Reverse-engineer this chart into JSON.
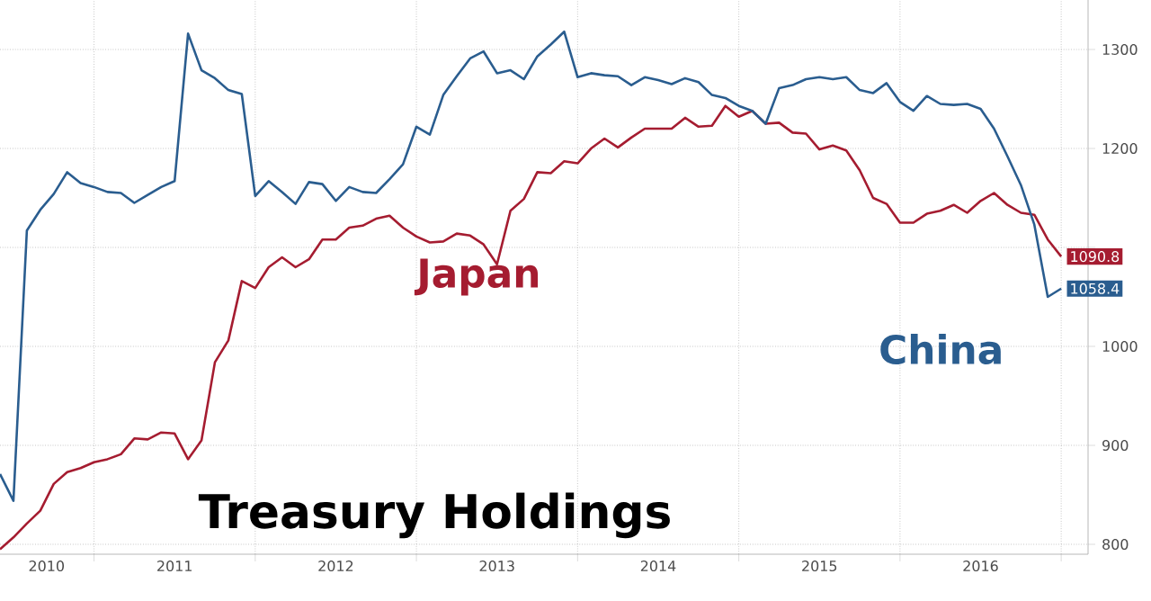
{
  "chart_data": {
    "type": "line",
    "title": "Treasury Holdings",
    "x": [
      "2010-06",
      "2010-07",
      "2010-08",
      "2010-09",
      "2010-10",
      "2010-11",
      "2010-12",
      "2011-01",
      "2011-02",
      "2011-03",
      "2011-04",
      "2011-05",
      "2011-06",
      "2011-07",
      "2011-08",
      "2011-09",
      "2011-10",
      "2011-11",
      "2011-12",
      "2012-01",
      "2012-02",
      "2012-03",
      "2012-04",
      "2012-05",
      "2012-06",
      "2012-07",
      "2012-08",
      "2012-09",
      "2012-10",
      "2012-11",
      "2012-12",
      "2013-01",
      "2013-02",
      "2013-03",
      "2013-04",
      "2013-05",
      "2013-06",
      "2013-07",
      "2013-08",
      "2013-09",
      "2013-10",
      "2013-11",
      "2013-12",
      "2014-01",
      "2014-02",
      "2014-03",
      "2014-04",
      "2014-05",
      "2014-06",
      "2014-07",
      "2014-08",
      "2014-09",
      "2014-10",
      "2014-11",
      "2014-12",
      "2015-01",
      "2015-02",
      "2015-03",
      "2015-04",
      "2015-05",
      "2015-06",
      "2015-07",
      "2015-08",
      "2015-09",
      "2015-10",
      "2015-11",
      "2015-12",
      "2016-01",
      "2016-02",
      "2016-03",
      "2016-04",
      "2016-05",
      "2016-06",
      "2016-07",
      "2016-08",
      "2016-09",
      "2016-10",
      "2016-11",
      "2016-12",
      "2017-01"
    ],
    "series": [
      {
        "name": "Japan",
        "color": "#a51c30",
        "values": [
          795,
          807,
          821,
          834,
          861,
          873,
          877,
          883,
          886,
          891,
          907,
          906,
          913,
          912,
          886,
          905,
          984,
          1006,
          1066,
          1059,
          1080,
          1090,
          1080,
          1088,
          1108,
          1108,
          1120,
          1122,
          1129,
          1132,
          1120,
          1111,
          1105,
          1106,
          1114,
          1112,
          1103,
          1083,
          1137,
          1149,
          1176,
          1175,
          1187,
          1185,
          1200,
          1210,
          1201,
          1211,
          1220,
          1220,
          1220,
          1231,
          1222,
          1223,
          1243,
          1232,
          1238,
          1225,
          1226,
          1216,
          1215,
          1199,
          1203,
          1198,
          1178,
          1150,
          1144,
          1125,
          1125,
          1134,
          1137,
          1143,
          1135,
          1147,
          1155,
          1143,
          1135,
          1133,
          1108,
          1090.8
        ],
        "value_labels": [
          null,
          null,
          null,
          null,
          null,
          null,
          null,
          null,
          null,
          null,
          null,
          null,
          null,
          null,
          null,
          null,
          null,
          null,
          null,
          null,
          null,
          null,
          null,
          null,
          null,
          null,
          null,
          null,
          null,
          null,
          null,
          null,
          null,
          null,
          null,
          null,
          null,
          null,
          null,
          null,
          null,
          null,
          null,
          null,
          null,
          null,
          null,
          null,
          null,
          null,
          null,
          null,
          null,
          null,
          null,
          null,
          null,
          null,
          null,
          null,
          null,
          null,
          null,
          null,
          null,
          null,
          null,
          null,
          null,
          null,
          null,
          null,
          null,
          null,
          null,
          null,
          null,
          null,
          null,
          "1090.8"
        ]
      },
      {
        "name": "China",
        "color": "#2a5d8f",
        "values": [
          871,
          844,
          1117,
          1138,
          1154,
          1176,
          1165,
          1161,
          1156,
          1155,
          1145,
          1153,
          1161,
          1167,
          1316,
          1279,
          1271,
          1259,
          1255,
          1152,
          1167,
          1156,
          1144,
          1166,
          1164,
          1147,
          1161,
          1156,
          1155,
          1169,
          1184,
          1222,
          1214,
          1254,
          1273,
          1291,
          1298,
          1276,
          1279,
          1270,
          1293,
          1305,
          1318,
          1272,
          1276,
          1274,
          1273,
          1264,
          1272,
          1269,
          1265,
          1271,
          1267,
          1254,
          1251,
          1243,
          1238,
          1225,
          1261,
          1264,
          1270,
          1272,
          1270,
          1272,
          1259,
          1256,
          1266,
          1247,
          1238,
          1253,
          1245,
          1244,
          1245,
          1240,
          1220,
          1192,
          1163,
          1123,
          1050,
          1058.4
        ],
        "value_labels": [
          null,
          null,
          null,
          null,
          null,
          null,
          null,
          null,
          null,
          null,
          null,
          null,
          null,
          null,
          null,
          null,
          null,
          null,
          null,
          null,
          null,
          null,
          null,
          null,
          null,
          null,
          null,
          null,
          null,
          null,
          null,
          null,
          null,
          null,
          null,
          null,
          null,
          null,
          null,
          null,
          null,
          null,
          null,
          null,
          null,
          null,
          null,
          null,
          null,
          null,
          null,
          null,
          null,
          null,
          null,
          null,
          null,
          null,
          null,
          null,
          null,
          null,
          null,
          null,
          null,
          null,
          null,
          null,
          null,
          null,
          null,
          null,
          null,
          null,
          null,
          null,
          null,
          null,
          null,
          "1058.4"
        ]
      }
    ],
    "xlim": [
      "2010-06",
      "2017-03"
    ],
    "ylim": [
      790,
      1350
    ],
    "xticks": [
      {
        "value": "2010-09-15",
        "label": "2010"
      },
      {
        "value": "2011-01",
        "label": null
      },
      {
        "value": "2011-07",
        "label": "2011"
      },
      {
        "value": "2012-01",
        "label": null
      },
      {
        "value": "2012-07",
        "label": "2012"
      },
      {
        "value": "2013-01",
        "label": null
      },
      {
        "value": "2013-07",
        "label": "2013"
      },
      {
        "value": "2014-01",
        "label": null
      },
      {
        "value": "2014-07",
        "label": "2014"
      },
      {
        "value": "2015-01",
        "label": null
      },
      {
        "value": "2015-07",
        "label": "2015"
      },
      {
        "value": "2016-01",
        "label": null
      },
      {
        "value": "2016-07",
        "label": "2016"
      },
      {
        "value": "2017-01",
        "label": null
      }
    ],
    "yticks": [
      800,
      900,
      1000,
      {
        "value": 1100,
        "label": null
      },
      1200,
      1300
    ],
    "grid": true
  }
}
